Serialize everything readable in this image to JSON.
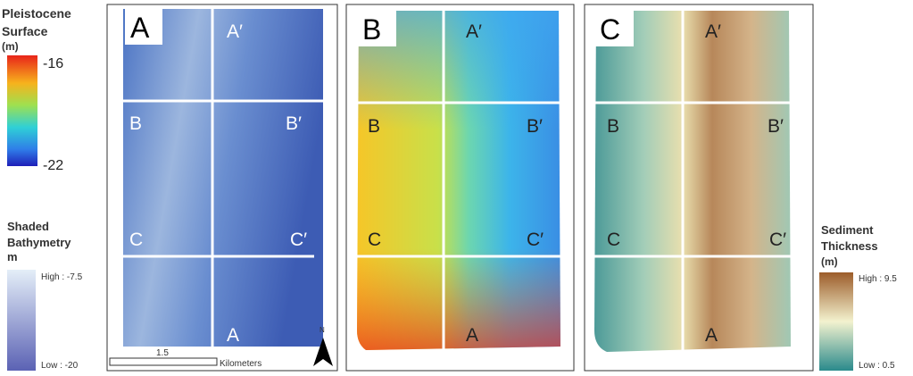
{
  "legend_pleistocene": {
    "title": [
      "Pleistocene",
      "Surface",
      "(m)"
    ],
    "max": "-16",
    "min": "-22"
  },
  "legend_bathymetry": {
    "title": [
      "Shaded",
      "Bathymetry",
      "m"
    ],
    "high": "High : -7.5",
    "low": "Low : -20"
  },
  "panels": [
    {
      "letter": "A",
      "labels": [
        "A′",
        "B",
        "B′",
        "C",
        "C′",
        "A"
      ]
    },
    {
      "letter": "B",
      "labels": [
        "A′",
        "B",
        "B′",
        "C",
        "C′",
        "A"
      ]
    },
    {
      "letter": "C",
      "labels": [
        "A′",
        "B",
        "B′",
        "C",
        "C′",
        "A"
      ]
    }
  ],
  "scale": {
    "value": "1.5",
    "unit": "Kilometers"
  },
  "north": "N",
  "legend_sediment": {
    "title": [
      "Sediment",
      "Thickness",
      "(m)"
    ],
    "high": "High : 9.5",
    "low": "Low : 0.5"
  }
}
